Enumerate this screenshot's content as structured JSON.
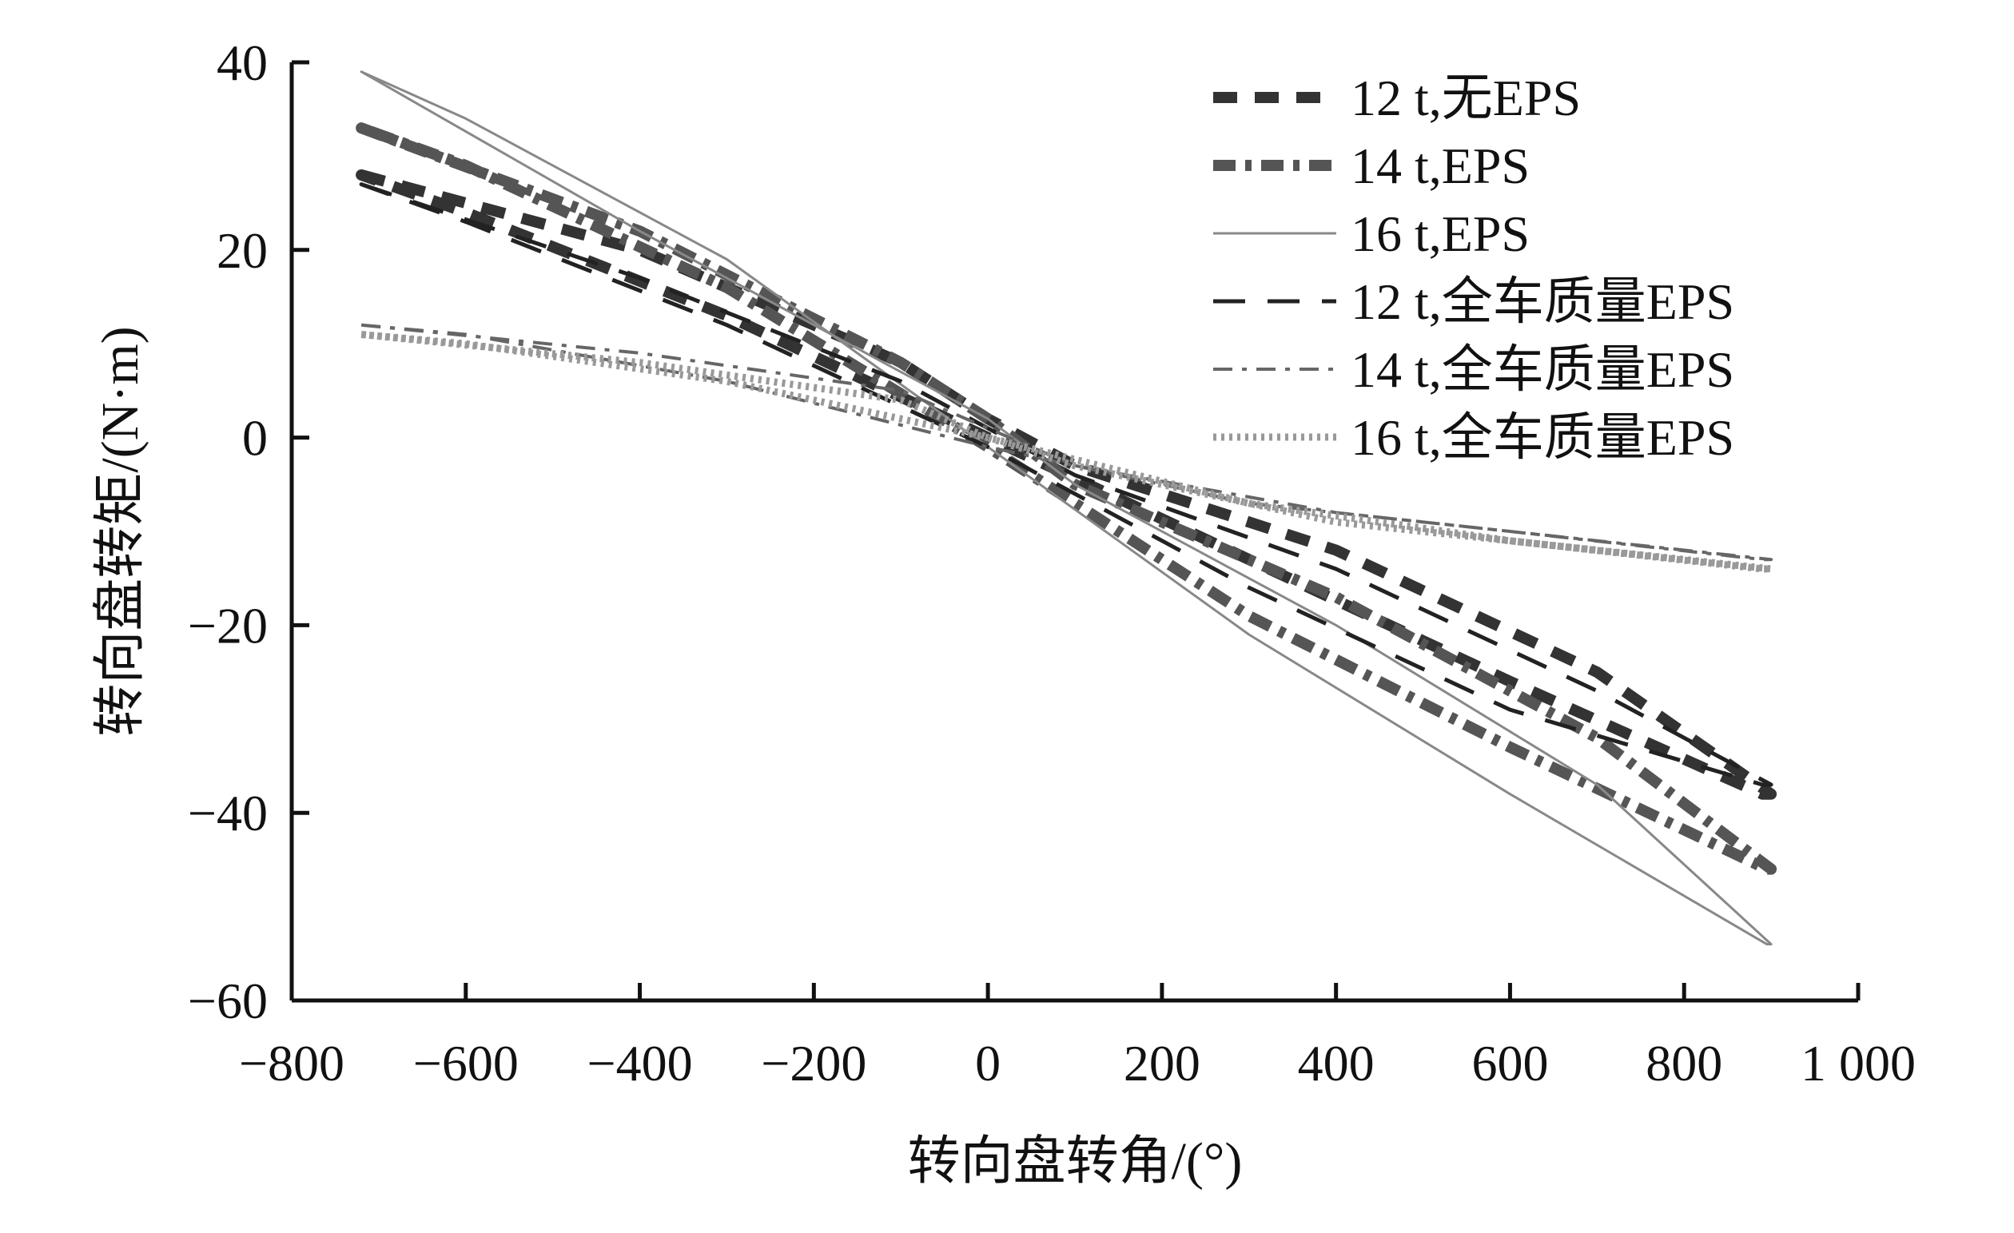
{
  "chart_data": {
    "type": "line",
    "title": "",
    "xlabel": "转向盘转角/(°)",
    "ylabel": "转向盘转矩/(N·m)",
    "xlim": [
      -800,
      1000
    ],
    "ylim": [
      -60,
      40
    ],
    "x_ticks": [
      -800,
      -600,
      -400,
      -200,
      0,
      200,
      400,
      600,
      800,
      1000
    ],
    "x_tick_labels": [
      "−800",
      "−600",
      "−400",
      "−200",
      "0",
      "200",
      "400",
      "600",
      "800",
      "1 000"
    ],
    "y_ticks": [
      40,
      20,
      0,
      -20,
      -40,
      -60
    ],
    "y_tick_labels": [
      "40",
      "20",
      "0",
      "−20",
      "−40",
      "−60"
    ],
    "grid": false,
    "legend_position": "top-right",
    "series": [
      {
        "name": "12 t,无EPS",
        "color": "#333333",
        "style": "thick-dash",
        "x": [
          -720,
          -400,
          -100,
          0,
          100,
          400,
          700,
          900,
          890,
          600,
          300,
          0,
          -300,
          -600,
          -720
        ],
        "y": [
          28,
          20,
          8,
          2,
          -3,
          -12,
          -25,
          -38,
          -38,
          -26,
          -13,
          0,
          13,
          24,
          28
        ]
      },
      {
        "name": "14 t,EPS",
        "color": "#555555",
        "style": "thick-dash-dot",
        "x": [
          -720,
          -400,
          -100,
          0,
          100,
          400,
          700,
          900,
          895,
          600,
          300,
          0,
          -300,
          -600,
          -720
        ],
        "y": [
          33,
          22,
          8,
          2,
          -5,
          -17,
          -32,
          -46,
          -46,
          -33,
          -19,
          -1,
          16,
          29,
          33
        ]
      },
      {
        "name": "16 t,EPS",
        "color": "#888888",
        "style": "thin-solid",
        "x": [
          -720,
          -400,
          -100,
          0,
          100,
          400,
          700,
          900,
          895,
          600,
          300,
          0,
          -300,
          -600,
          -720
        ],
        "y": [
          39,
          22,
          7,
          2,
          -5,
          -20,
          -37,
          -54,
          -54,
          -38,
          -21,
          -1,
          19,
          34,
          39
        ]
      },
      {
        "name": "12 t,全车质量EPS",
        "color": "#222222",
        "style": "long-dash",
        "x": [
          -720,
          -400,
          -100,
          0,
          100,
          400,
          700,
          900,
          890,
          600,
          300,
          0,
          -300,
          -600,
          -720
        ],
        "y": [
          27,
          17,
          6,
          1,
          -4,
          -14,
          -27,
          -37,
          -37,
          -29,
          -16,
          -1,
          12,
          23,
          27
        ]
      },
      {
        "name": "14 t,全车质量EPS",
        "color": "#666666",
        "style": "dash-dot",
        "x": [
          -720,
          -400,
          -100,
          0,
          100,
          400,
          700,
          900,
          890,
          600,
          300,
          0,
          -300,
          -600,
          -720
        ],
        "y": [
          12,
          9,
          5,
          1,
          -3,
          -8,
          -11,
          -13,
          -13,
          -10,
          -7,
          -1,
          6,
          11,
          12
        ]
      },
      {
        "name": "16 t,全车质量EPS",
        "color": "#999999",
        "style": "dotted",
        "x": [
          -720,
          -400,
          -100,
          0,
          100,
          400,
          700,
          900,
          890,
          600,
          300,
          0,
          -300,
          -600,
          -720
        ],
        "y": [
          11,
          8,
          4,
          0,
          -3,
          -9,
          -12,
          -14,
          -14,
          -11,
          -7,
          0,
          6,
          10,
          11
        ]
      }
    ]
  }
}
